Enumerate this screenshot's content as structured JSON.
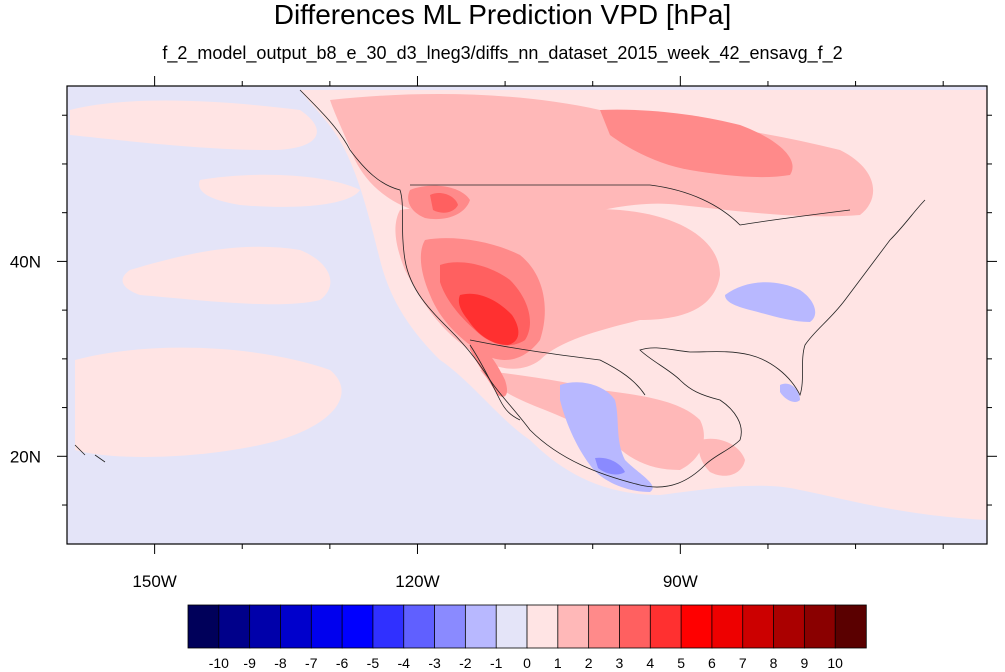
{
  "title": "Differences ML Prediction VPD [hPa]",
  "subtitle": "f_2_model_output_b8_e_30_d3_lneg3/diffs_nn_dataset_2015_week_42_ensavg_f_2",
  "map": {
    "lon_range": [
      -160,
      -55
    ],
    "lat_range": [
      11,
      58
    ],
    "lon_ticks": [
      {
        "value": -150,
        "label": "150W"
      },
      {
        "value": -120,
        "label": "120W"
      },
      {
        "value": -90,
        "label": "90W"
      }
    ],
    "lat_ticks": [
      {
        "value": 40,
        "label": "40N"
      },
      {
        "value": 20,
        "label": "20N"
      }
    ],
    "minor_lon_ticks": [
      -140,
      -130,
      -110,
      -100,
      -80,
      -70,
      -60
    ],
    "minor_lat_ticks": [
      15,
      25,
      30,
      35,
      45,
      50,
      55
    ],
    "background_color": "#e4e4f8"
  },
  "colorbar": {
    "labels": [
      "-10",
      "-9",
      "-8",
      "-7",
      "-6",
      "-5",
      "-4",
      "-3",
      "-2",
      "-1",
      "0",
      "1",
      "2",
      "3",
      "4",
      "5",
      "6",
      "7",
      "8",
      "9",
      "10"
    ],
    "colors": [
      "#00005a",
      "#00008a",
      "#0000aa",
      "#0000cc",
      "#0000ee",
      "#0000ff",
      "#3030ff",
      "#6060ff",
      "#8a8aff",
      "#b8b8ff",
      "#e4e4f8",
      "#ffe4e4",
      "#ffb8b8",
      "#ff8a8a",
      "#ff6060",
      "#ff3030",
      "#ff0000",
      "#ee0000",
      "#cc0000",
      "#aa0000",
      "#8a0000",
      "#5a0000"
    ]
  }
}
